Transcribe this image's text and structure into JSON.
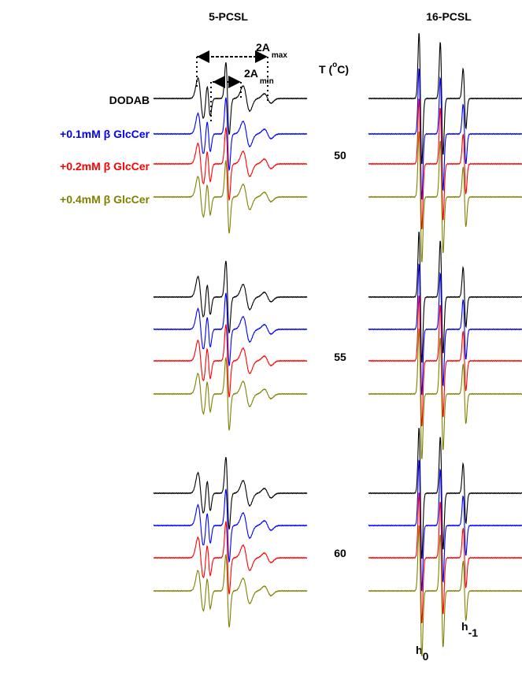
{
  "panels": [
    {
      "title": "5-PCSL"
    },
    {
      "title": "16-PCSL"
    }
  ],
  "legend": [
    {
      "label": "DODAB",
      "color": "#000000"
    },
    {
      "label": "+0.1mM β GlcCer",
      "color": "#0000ff"
    },
    {
      "label": "+0.2mM β GlcCer",
      "color": "#ff0000"
    },
    {
      "label": "+0.4mM β GlcCer",
      "color": "#808000"
    }
  ],
  "temperature_label": {
    "prefix": "T (",
    "degree": "o",
    "suffix": "C)"
  },
  "temperatures": [
    50,
    55,
    60
  ],
  "annotations": {
    "a_max": {
      "text": "2A",
      "sub": "max"
    },
    "a_min": {
      "text": "2A",
      "sub": "min"
    },
    "h0": {
      "text": "h",
      "sub": "0"
    },
    "h_minus1": {
      "text": "h",
      "sub": "-1"
    }
  }
}
